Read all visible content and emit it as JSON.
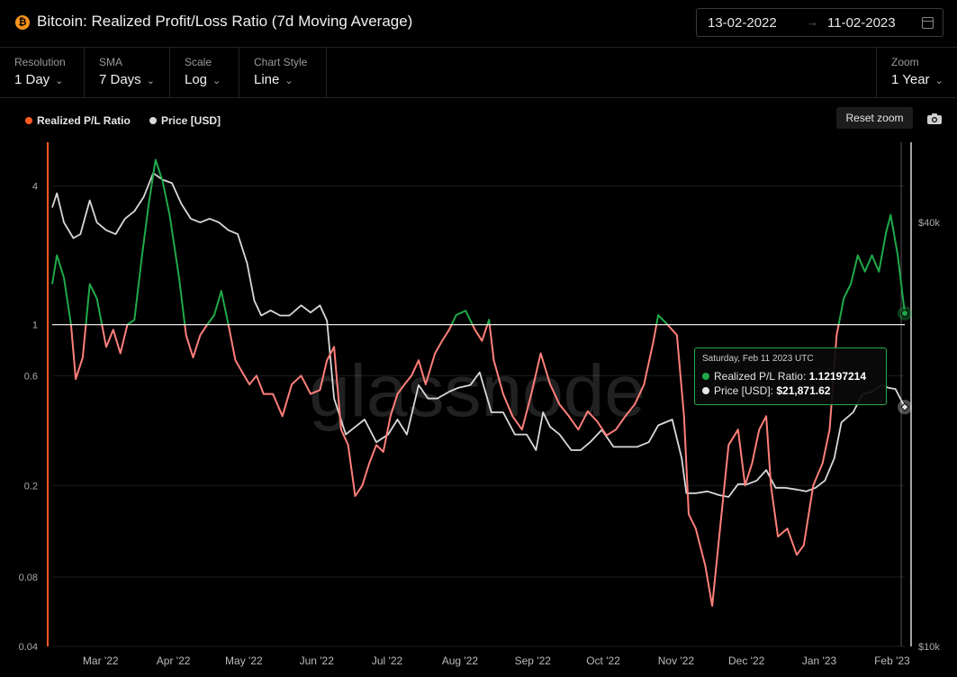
{
  "header": {
    "coin_symbol": "₿",
    "title": "Bitcoin: Realized Profit/Loss Ratio (7d Moving Average)",
    "date_start": "13-02-2022",
    "date_arrow": "→",
    "date_end": "11-02-2023"
  },
  "controls": [
    {
      "label": "Resolution",
      "value": "1 Day"
    },
    {
      "label": "SMA",
      "value": "7 Days"
    },
    {
      "label": "Scale",
      "value": "Log"
    },
    {
      "label": "Chart Style",
      "value": "Line"
    }
  ],
  "zoom": {
    "label": "Zoom",
    "value": "1 Year"
  },
  "legend": {
    "items": [
      {
        "label": "Realized P/L Ratio",
        "color": "#ff5a1f"
      },
      {
        "label": "Price [USD]",
        "color": "#d9d9d9"
      }
    ]
  },
  "reset_zoom_label": "Reset zoom",
  "watermark": "glassnode",
  "tooltip": {
    "date": "Saturday, Feb 11 2023 UTC",
    "ratio_label": "Realized P/L Ratio:",
    "ratio_value": "1.12197214",
    "price_label": "Price [USD]:",
    "price_value": "$21,871.62"
  },
  "colors": {
    "above_one": "#1faa4a",
    "below_one": "#ff7f7a",
    "price_line": "#d9d9d9",
    "background": "#000000"
  },
  "chart_data": {
    "type": "line",
    "scale": "log",
    "x_ticks": [
      "Mar '22",
      "Apr '22",
      "May '22",
      "Jun '22",
      "Jul '22",
      "Aug '22",
      "Sep '22",
      "Oct '22",
      "Nov '22",
      "Dec '22",
      "Jan '23",
      "Feb '23"
    ],
    "left_ticks": [
      "4",
      "1",
      "0.6",
      "0.2",
      "0.08",
      "0.04"
    ],
    "left_tick_values": [
      4,
      1,
      0.6,
      0.2,
      0.08,
      0.04
    ],
    "right_ticks": [
      "$40k",
      "$10k"
    ],
    "right_tick_values": [
      40000,
      10000
    ],
    "left_ylim": [
      0.04,
      6.2
    ],
    "right_ylim": [
      10000,
      52000
    ],
    "x_range": [
      "2022-02-13",
      "2023-02-11"
    ],
    "series": [
      {
        "name": "Realized P/L Ratio",
        "axis": "left",
        "points": [
          [
            "2022-02-13",
            1.5
          ],
          [
            "2022-02-15",
            2.0
          ],
          [
            "2022-02-18",
            1.6
          ],
          [
            "2022-02-21",
            1.0
          ],
          [
            "2022-02-23",
            0.58
          ],
          [
            "2022-02-26",
            0.72
          ],
          [
            "2022-03-01",
            1.5
          ],
          [
            "2022-03-04",
            1.3
          ],
          [
            "2022-03-08",
            0.8
          ],
          [
            "2022-03-11",
            0.95
          ],
          [
            "2022-03-14",
            0.75
          ],
          [
            "2022-03-17",
            1.0
          ],
          [
            "2022-03-20",
            1.05
          ],
          [
            "2022-03-23",
            1.9
          ],
          [
            "2022-03-26",
            3.3
          ],
          [
            "2022-03-29",
            5.2
          ],
          [
            "2022-04-01",
            4.2
          ],
          [
            "2022-04-04",
            3.0
          ],
          [
            "2022-04-08",
            1.6
          ],
          [
            "2022-04-11",
            0.9
          ],
          [
            "2022-04-14",
            0.72
          ],
          [
            "2022-04-17",
            0.9
          ],
          [
            "2022-04-20",
            1.0
          ],
          [
            "2022-04-23",
            1.1
          ],
          [
            "2022-04-26",
            1.4
          ],
          [
            "2022-04-29",
            1.0
          ],
          [
            "2022-05-02",
            0.7
          ],
          [
            "2022-05-05",
            0.62
          ],
          [
            "2022-05-08",
            0.55
          ],
          [
            "2022-05-11",
            0.6
          ],
          [
            "2022-05-14",
            0.5
          ],
          [
            "2022-05-18",
            0.5
          ],
          [
            "2022-05-22",
            0.4
          ],
          [
            "2022-05-26",
            0.55
          ],
          [
            "2022-05-30",
            0.6
          ],
          [
            "2022-06-03",
            0.5
          ],
          [
            "2022-06-07",
            0.52
          ],
          [
            "2022-06-10",
            0.7
          ],
          [
            "2022-06-13",
            0.8
          ],
          [
            "2022-06-16",
            0.35
          ],
          [
            "2022-06-19",
            0.3
          ],
          [
            "2022-06-22",
            0.18
          ],
          [
            "2022-06-25",
            0.2
          ],
          [
            "2022-06-28",
            0.25
          ],
          [
            "2022-07-01",
            0.3
          ],
          [
            "2022-07-04",
            0.28
          ],
          [
            "2022-07-07",
            0.4
          ],
          [
            "2022-07-10",
            0.5
          ],
          [
            "2022-07-13",
            0.55
          ],
          [
            "2022-07-16",
            0.6
          ],
          [
            "2022-07-19",
            0.7
          ],
          [
            "2022-07-22",
            0.55
          ],
          [
            "2022-07-26",
            0.75
          ],
          [
            "2022-07-29",
            0.85
          ],
          [
            "2022-08-01",
            0.95
          ],
          [
            "2022-08-04",
            1.1
          ],
          [
            "2022-08-08",
            1.15
          ],
          [
            "2022-08-12",
            0.95
          ],
          [
            "2022-08-15",
            0.85
          ],
          [
            "2022-08-18",
            1.05
          ],
          [
            "2022-08-20",
            0.7
          ],
          [
            "2022-08-24",
            0.5
          ],
          [
            "2022-08-28",
            0.4
          ],
          [
            "2022-09-01",
            0.35
          ],
          [
            "2022-09-05",
            0.5
          ],
          [
            "2022-09-09",
            0.75
          ],
          [
            "2022-09-13",
            0.55
          ],
          [
            "2022-09-17",
            0.45
          ],
          [
            "2022-09-21",
            0.4
          ],
          [
            "2022-09-25",
            0.35
          ],
          [
            "2022-09-29",
            0.42
          ],
          [
            "2022-10-03",
            0.38
          ],
          [
            "2022-10-07",
            0.33
          ],
          [
            "2022-10-11",
            0.35
          ],
          [
            "2022-10-15",
            0.4
          ],
          [
            "2022-10-19",
            0.45
          ],
          [
            "2022-10-23",
            0.55
          ],
          [
            "2022-10-27",
            0.85
          ],
          [
            "2022-10-29",
            1.1
          ],
          [
            "2022-11-02",
            1.0
          ],
          [
            "2022-11-06",
            0.9
          ],
          [
            "2022-11-09",
            0.4
          ],
          [
            "2022-11-11",
            0.15
          ],
          [
            "2022-11-14",
            0.13
          ],
          [
            "2022-11-18",
            0.09
          ],
          [
            "2022-11-21",
            0.06
          ],
          [
            "2022-11-24",
            0.12
          ],
          [
            "2022-11-28",
            0.3
          ],
          [
            "2022-12-02",
            0.35
          ],
          [
            "2022-12-05",
            0.2
          ],
          [
            "2022-12-08",
            0.25
          ],
          [
            "2022-12-11",
            0.35
          ],
          [
            "2022-12-14",
            0.4
          ],
          [
            "2022-12-16",
            0.2
          ],
          [
            "2022-12-19",
            0.12
          ],
          [
            "2022-12-23",
            0.13
          ],
          [
            "2022-12-27",
            0.1
          ],
          [
            "2022-12-30",
            0.11
          ],
          [
            "2023-01-03",
            0.2
          ],
          [
            "2023-01-07",
            0.25
          ],
          [
            "2023-01-10",
            0.35
          ],
          [
            "2023-01-13",
            0.9
          ],
          [
            "2023-01-16",
            1.3
          ],
          [
            "2023-01-19",
            1.5
          ],
          [
            "2023-01-22",
            2.0
          ],
          [
            "2023-01-25",
            1.7
          ],
          [
            "2023-01-28",
            2.0
          ],
          [
            "2023-01-31",
            1.7
          ],
          [
            "2023-02-03",
            2.5
          ],
          [
            "2023-02-05",
            3.0
          ],
          [
            "2023-02-08",
            2.0
          ],
          [
            "2023-02-11",
            1.12
          ]
        ]
      },
      {
        "name": "Price [USD]",
        "axis": "right",
        "points": [
          [
            "2022-02-13",
            42000
          ],
          [
            "2022-02-15",
            44000
          ],
          [
            "2022-02-18",
            40000
          ],
          [
            "2022-02-22",
            38000
          ],
          [
            "2022-02-25",
            38500
          ],
          [
            "2022-03-01",
            43000
          ],
          [
            "2022-03-04",
            40000
          ],
          [
            "2022-03-08",
            39000
          ],
          [
            "2022-03-12",
            38500
          ],
          [
            "2022-03-16",
            40500
          ],
          [
            "2022-03-20",
            41500
          ],
          [
            "2022-03-24",
            43500
          ],
          [
            "2022-03-28",
            47000
          ],
          [
            "2022-04-01",
            46000
          ],
          [
            "2022-04-05",
            45500
          ],
          [
            "2022-04-09",
            42500
          ],
          [
            "2022-04-13",
            40500
          ],
          [
            "2022-04-17",
            40000
          ],
          [
            "2022-04-21",
            40500
          ],
          [
            "2022-04-25",
            40000
          ],
          [
            "2022-04-29",
            39000
          ],
          [
            "2022-05-03",
            38500
          ],
          [
            "2022-05-07",
            35000
          ],
          [
            "2022-05-10",
            31000
          ],
          [
            "2022-05-13",
            29500
          ],
          [
            "2022-05-17",
            30000
          ],
          [
            "2022-05-21",
            29500
          ],
          [
            "2022-05-25",
            29500
          ],
          [
            "2022-05-30",
            30500
          ],
          [
            "2022-06-03",
            29800
          ],
          [
            "2022-06-07",
            30500
          ],
          [
            "2022-06-10",
            29000
          ],
          [
            "2022-06-13",
            22500
          ],
          [
            "2022-06-18",
            20000
          ],
          [
            "2022-06-22",
            20500
          ],
          [
            "2022-06-26",
            21000
          ],
          [
            "2022-07-01",
            19500
          ],
          [
            "2022-07-06",
            20000
          ],
          [
            "2022-07-10",
            21000
          ],
          [
            "2022-07-14",
            20000
          ],
          [
            "2022-07-19",
            23500
          ],
          [
            "2022-07-23",
            22500
          ],
          [
            "2022-07-27",
            22500
          ],
          [
            "2022-08-01",
            23000
          ],
          [
            "2022-08-05",
            23300
          ],
          [
            "2022-08-10",
            23500
          ],
          [
            "2022-08-14",
            24500
          ],
          [
            "2022-08-19",
            21500
          ],
          [
            "2022-08-24",
            21500
          ],
          [
            "2022-08-29",
            20000
          ],
          [
            "2022-09-03",
            20000
          ],
          [
            "2022-09-07",
            19000
          ],
          [
            "2022-09-10",
            21500
          ],
          [
            "2022-09-13",
            20500
          ],
          [
            "2022-09-17",
            20000
          ],
          [
            "2022-09-22",
            19000
          ],
          [
            "2022-09-26",
            19000
          ],
          [
            "2022-09-30",
            19500
          ],
          [
            "2022-10-05",
            20300
          ],
          [
            "2022-10-10",
            19200
          ],
          [
            "2022-10-15",
            19200
          ],
          [
            "2022-10-20",
            19200
          ],
          [
            "2022-10-25",
            19500
          ],
          [
            "2022-10-29",
            20600
          ],
          [
            "2022-11-04",
            21000
          ],
          [
            "2022-11-08",
            18500
          ],
          [
            "2022-11-10",
            16500
          ],
          [
            "2022-11-14",
            16500
          ],
          [
            "2022-11-19",
            16600
          ],
          [
            "2022-11-24",
            16400
          ],
          [
            "2022-11-28",
            16300
          ],
          [
            "2022-12-02",
            17000
          ],
          [
            "2022-12-06",
            17000
          ],
          [
            "2022-12-10",
            17200
          ],
          [
            "2022-12-14",
            17800
          ],
          [
            "2022-12-18",
            16800
          ],
          [
            "2022-12-22",
            16800
          ],
          [
            "2022-12-27",
            16700
          ],
          [
            "2022-12-31",
            16600
          ],
          [
            "2023-01-04",
            16800
          ],
          [
            "2023-01-08",
            17200
          ],
          [
            "2023-01-12",
            18500
          ],
          [
            "2023-01-15",
            20800
          ],
          [
            "2023-01-20",
            21500
          ],
          [
            "2023-01-24",
            22800
          ],
          [
            "2023-01-28",
            23000
          ],
          [
            "2023-02-01",
            23500
          ],
          [
            "2023-02-04",
            23300
          ],
          [
            "2023-02-07",
            23200
          ],
          [
            "2023-02-11",
            21871.62
          ]
        ]
      }
    ]
  }
}
